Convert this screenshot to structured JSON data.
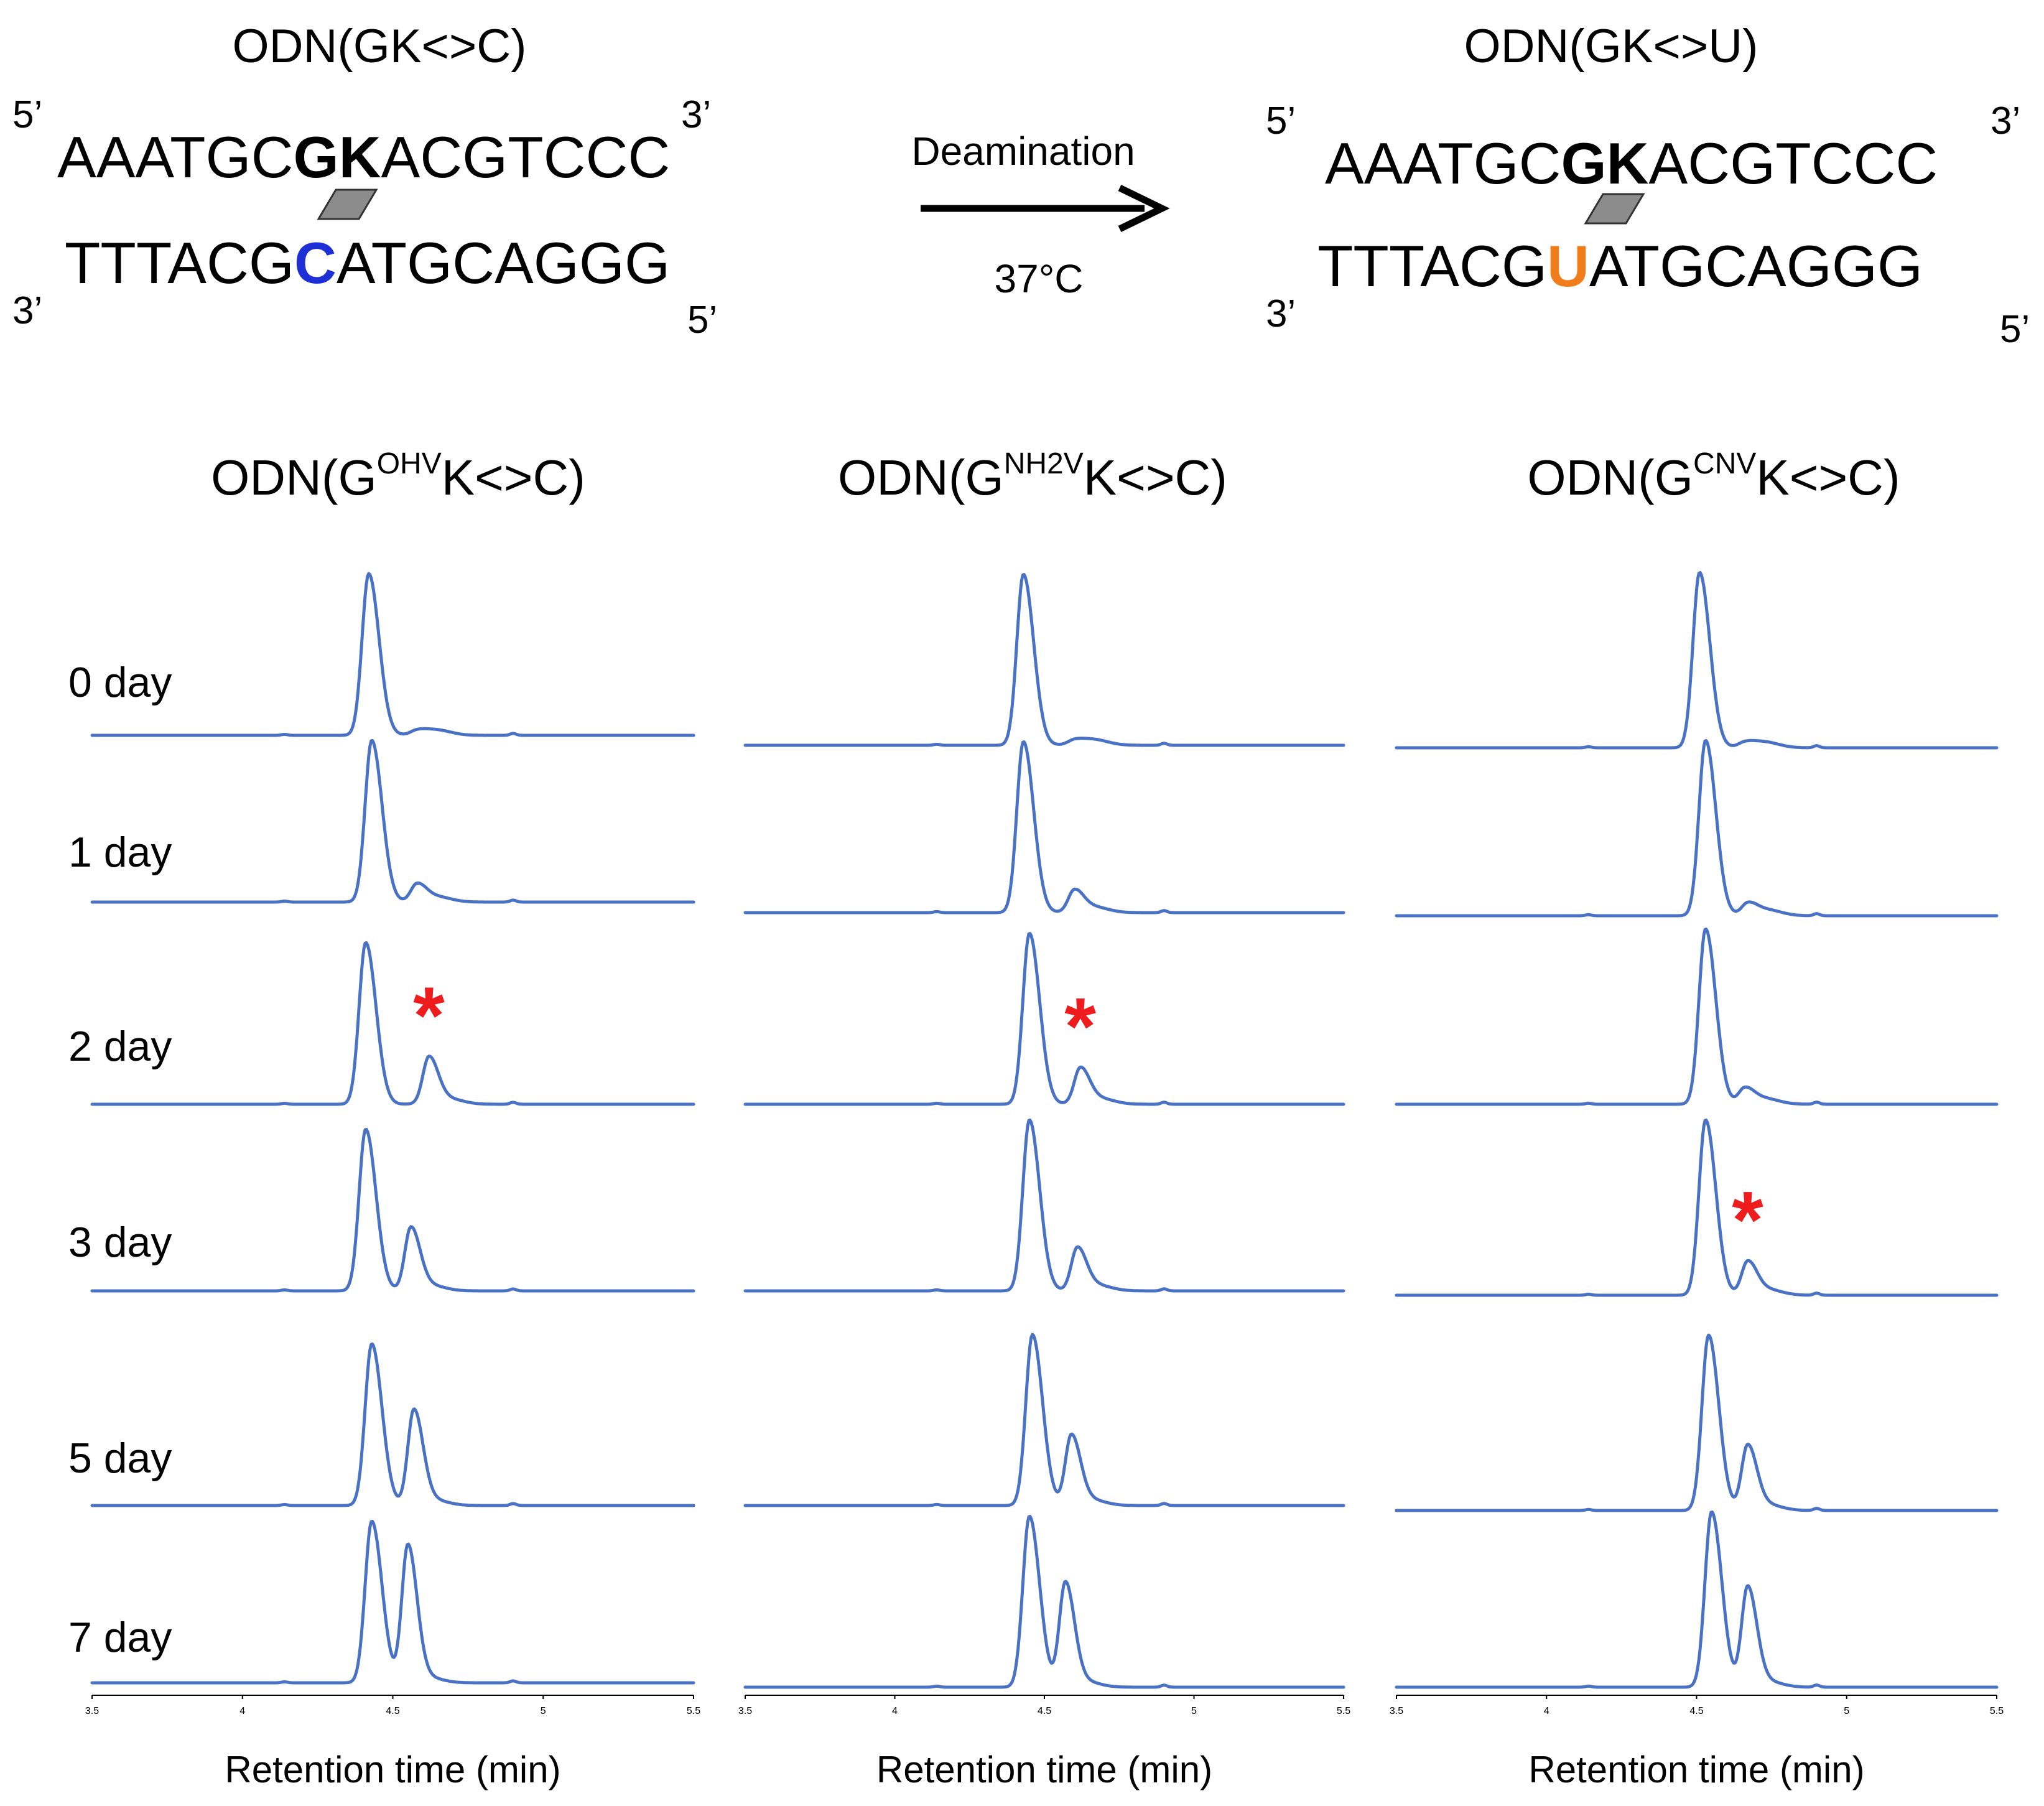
{
  "diagram": {
    "left": {
      "title": "ODN(GK<>C)",
      "prime5": "5’",
      "prime3": "3’",
      "top_a": "AAATGC",
      "top_b": "GK",
      "top_c": "ACGTCCC",
      "bottom_a": "TTTACG",
      "bottom_b": "C",
      "bottom_c": "ATGCAGGG",
      "bottom_b_color": "#1f2fd6"
    },
    "right": {
      "title": "ODN(GK<>U)",
      "prime5": "5’",
      "prime3": "3’",
      "top_a": "AAATGC",
      "top_b": "GK",
      "top_c": "ACGTCCC",
      "bottom_a": "TTTACG",
      "bottom_b": "U",
      "bottom_c": "ATGCAGGG",
      "bottom_b_color": "#f07d1a"
    },
    "arrow_label": "Deamination",
    "arrow_sublabel": "37°C",
    "stacking_color": "#8c8c8c"
  },
  "days": [
    "0 day",
    "1 day",
    "2 day",
    "3 day",
    "5 day",
    "7 day"
  ],
  "panel_titles": [
    {
      "pre": "ODN(G",
      "sup": "OHV",
      "post": "K<>C)"
    },
    {
      "pre": "ODN(G",
      "sup": "NH2V",
      "post": "K<>C)"
    },
    {
      "pre": "ODN(G",
      "sup": "CNV",
      "post": "K<>C)"
    }
  ],
  "asterisk": "*",
  "chart_data": [
    {
      "type": "line",
      "title": "ODN(GOHVK<>C)",
      "xlabel": "Retention time (min)",
      "ylabel": "",
      "xlim": [
        3.5,
        5.5
      ],
      "xticks": [
        "3.5",
        "4",
        "4.5",
        "5",
        "5.5"
      ],
      "x_tick_values": [
        3.5,
        4,
        4.5,
        5,
        5.5
      ],
      "series": [
        {
          "name": "0 day",
          "main_peak_time": 4.42,
          "main_peak_height": 1.0,
          "product_peak_time": 4.58,
          "product_peak_height": 0.02
        },
        {
          "name": "1 day",
          "main_peak_time": 4.43,
          "main_peak_height": 1.0,
          "product_peak_time": 4.58,
          "product_peak_height": 0.1
        },
        {
          "name": "2 day",
          "main_peak_time": 4.41,
          "main_peak_height": 1.0,
          "product_peak_time": 4.62,
          "product_peak_height": 0.28
        },
        {
          "name": "3 day",
          "main_peak_time": 4.41,
          "main_peak_height": 1.0,
          "product_peak_time": 4.56,
          "product_peak_height": 0.38
        },
        {
          "name": "5 day",
          "main_peak_time": 4.43,
          "main_peak_height": 1.0,
          "product_peak_time": 4.57,
          "product_peak_height": 0.58
        },
        {
          "name": "7 day",
          "main_peak_time": 4.43,
          "main_peak_height": 1.0,
          "product_peak_time": 4.55,
          "product_peak_height": 0.84
        }
      ],
      "annotation": {
        "series": "2 day",
        "text": "*"
      }
    },
    {
      "type": "line",
      "title": "ODN(GNH2VK<>C)",
      "xlabel": "Retention time (min)",
      "ylabel": "",
      "xlim": [
        3.5,
        5.5
      ],
      "xticks": [
        "3.5",
        "4",
        "4.5",
        "5",
        "5.5"
      ],
      "x_tick_values": [
        3.5,
        4,
        4.5,
        5,
        5.5
      ],
      "series": [
        {
          "name": "0 day",
          "main_peak_time": 4.43,
          "main_peak_height": 1.0,
          "product_peak_time": 4.6,
          "product_peak_height": 0.02
        },
        {
          "name": "1 day",
          "main_peak_time": 4.43,
          "main_peak_height": 1.0,
          "product_peak_time": 4.6,
          "product_peak_height": 0.12
        },
        {
          "name": "2 day",
          "main_peak_time": 4.45,
          "main_peak_height": 1.0,
          "product_peak_time": 4.62,
          "product_peak_height": 0.2
        },
        {
          "name": "3 day",
          "main_peak_time": 4.45,
          "main_peak_height": 1.0,
          "product_peak_time": 4.61,
          "product_peak_height": 0.24
        },
        {
          "name": "5 day",
          "main_peak_time": 4.46,
          "main_peak_height": 1.0,
          "product_peak_time": 4.59,
          "product_peak_height": 0.4
        },
        {
          "name": "7 day",
          "main_peak_time": 4.45,
          "main_peak_height": 1.0,
          "product_peak_time": 4.57,
          "product_peak_height": 0.6
        }
      ],
      "annotation": {
        "series": "2 day",
        "text": "*"
      }
    },
    {
      "type": "line",
      "title": "ODN(GCNVK<>C)",
      "xlabel": "Retention time (min)",
      "ylabel": "",
      "xlim": [
        3.5,
        5.5
      ],
      "xticks": [
        "3.5",
        "4",
        "4.5",
        "5",
        "5.5"
      ],
      "x_tick_values": [
        3.5,
        4,
        4.5,
        5,
        5.5
      ],
      "series": [
        {
          "name": "0 day",
          "main_peak_time": 4.51,
          "main_peak_height": 1.0,
          "product_peak_time": 4.66,
          "product_peak_height": 0.02
        },
        {
          "name": "1 day",
          "main_peak_time": 4.53,
          "main_peak_height": 1.0,
          "product_peak_time": 4.67,
          "product_peak_height": 0.06
        },
        {
          "name": "2 day",
          "main_peak_time": 4.53,
          "main_peak_height": 1.0,
          "product_peak_time": 4.66,
          "product_peak_height": 0.08
        },
        {
          "name": "3 day",
          "main_peak_time": 4.53,
          "main_peak_height": 1.0,
          "product_peak_time": 4.67,
          "product_peak_height": 0.18
        },
        {
          "name": "5 day",
          "main_peak_time": 4.54,
          "main_peak_height": 1.0,
          "product_peak_time": 4.67,
          "product_peak_height": 0.36
        },
        {
          "name": "7 day",
          "main_peak_time": 4.55,
          "main_peak_height": 1.0,
          "product_peak_time": 4.67,
          "product_peak_height": 0.56
        }
      ],
      "annotation": {
        "series": "3 day",
        "text": "*"
      }
    }
  ]
}
